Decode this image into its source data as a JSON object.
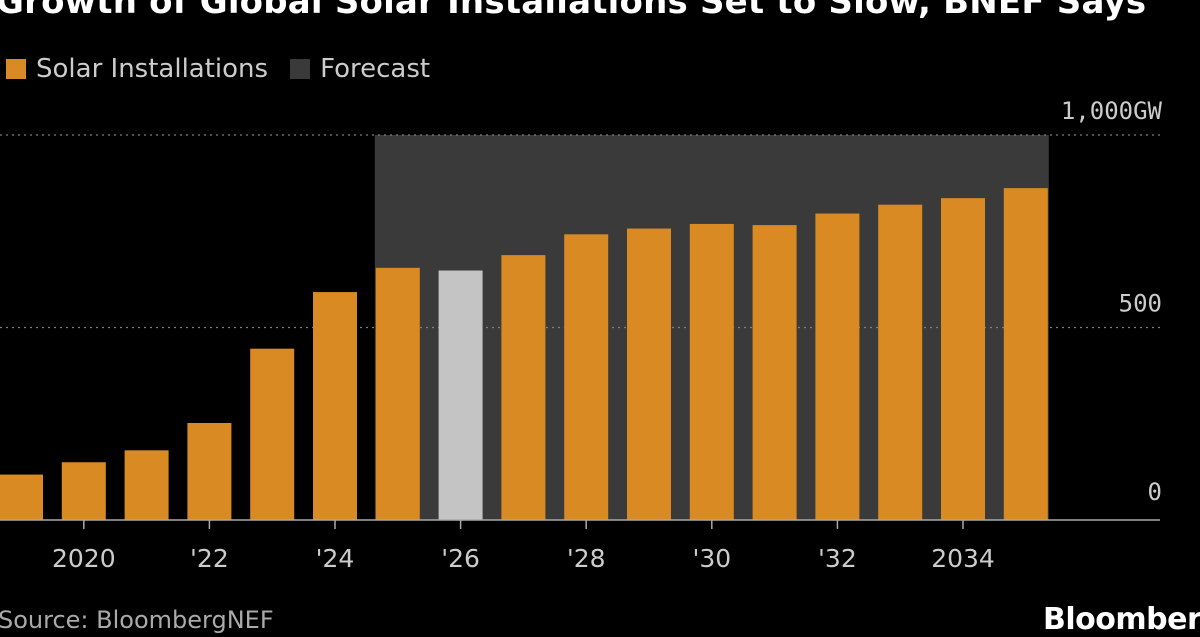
{
  "title": "Growth of Global Solar Installations Set to Slow, BNEF Says",
  "legend": [
    {
      "label": "Solar Installations",
      "color": "#d98a22"
    },
    {
      "label": "Forecast",
      "color": "#3a3a3a"
    }
  ],
  "source": "Source: BloombergNEF",
  "brand": "Bloomberg",
  "colors": {
    "background": "#000000",
    "bar": "#d98a22",
    "highlight_bar": "#c4c4c4",
    "forecast_shade": "#3a3a3a",
    "grid": "#808080",
    "axis": "#aaaaaa",
    "text": "#cccccc"
  },
  "chart_data": {
    "type": "bar",
    "title": "Growth of Global Solar Installations Set to Slow, BNEF Says",
    "xlabel": "",
    "ylabel": "",
    "x": [
      2019,
      2020,
      2021,
      2022,
      2023,
      2024,
      2025,
      2026,
      2027,
      2028,
      2029,
      2030,
      2031,
      2032,
      2033,
      2034,
      2035
    ],
    "series": [
      {
        "name": "Solar Installations",
        "values": [
          118,
          150,
          181,
          252,
          445,
          592,
          655,
          648,
          688,
          742,
          757,
          769,
          766,
          796,
          819,
          836,
          862
        ]
      }
    ],
    "highlight": {
      "x": 2026,
      "color": "#c4c4c4"
    },
    "forecast_range": [
      2025,
      2035
    ],
    "ylim": [
      0,
      1000
    ],
    "yticks": [
      0,
      500,
      1000
    ],
    "ytick_labels": [
      "0",
      "500",
      "1,000GW"
    ],
    "xticks": [
      2020,
      2022,
      2024,
      2026,
      2028,
      2030,
      2032,
      2034
    ],
    "xtick_labels": [
      "2020",
      "'22",
      "'24",
      "'26",
      "'28",
      "'30",
      "'32",
      "2034"
    ],
    "grid": "horizontal dashed",
    "legend_position": "top-left"
  }
}
